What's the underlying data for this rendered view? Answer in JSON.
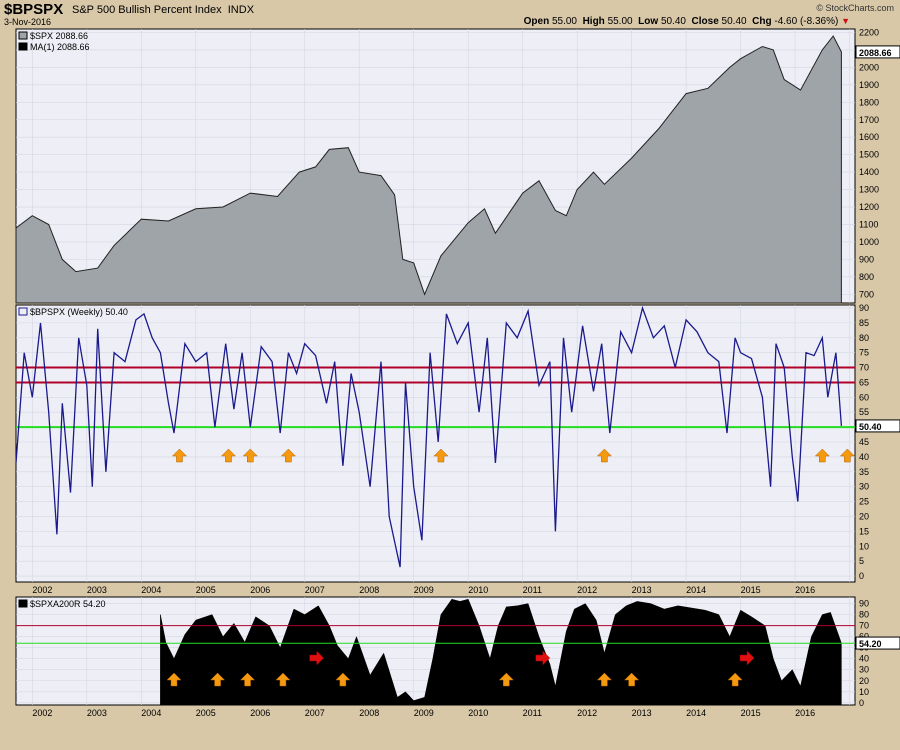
{
  "header": {
    "symbol": "$BPSPX",
    "description": "S&P 500 Bullish Percent Index",
    "exchange": "INDX",
    "date": "3-Nov-2016",
    "credit": "© StockCharts.com",
    "ohlc": {
      "open_label": "Open",
      "open": "55.00",
      "high_label": "High",
      "high": "55.00",
      "low_label": "Low",
      "low": "50.40",
      "close_label": "Close",
      "close": "50.40",
      "chg_label": "Chg",
      "chg": "-4.60 (-8.36%)"
    }
  },
  "colors": {
    "frame": "#d8c8a8",
    "panel_bg": "#eeeff6",
    "price_fill": "#9ea4a8",
    "bp_line": "#1a1a8c",
    "red_level": "#b0002a",
    "green_level": "#22dd22",
    "orange_arrow": "#f59a10",
    "red_arrow": "#e01010",
    "bars": "#000000"
  },
  "chart_data": [
    {
      "type": "area",
      "panel": "top",
      "legend": [
        "$SPX 2088.66",
        "MA(1) 2088.66"
      ],
      "last_value_label": "2088.66",
      "ylim": [
        650,
        2220
      ],
      "yticks": [
        700,
        800,
        900,
        1000,
        1100,
        1200,
        1300,
        1400,
        1500,
        1600,
        1700,
        1800,
        1900,
        2000,
        2100,
        2200
      ],
      "x_labels": [
        "2002",
        "2003",
        "2004",
        "2005",
        "2006",
        "2007",
        "2008",
        "2009",
        "2010",
        "2011",
        "2012",
        "2013",
        "2014",
        "2015",
        "2016"
      ],
      "series": [
        {
          "x": [
            2001.7,
            2002.0,
            2002.3,
            2002.55,
            2002.8,
            2003.2,
            2003.5,
            2004.0,
            2004.5,
            2005.0,
            2005.5,
            2006.0,
            2006.5,
            2006.9,
            2007.2,
            2007.45,
            2007.8,
            2008.0,
            2008.4,
            2008.65,
            2008.8,
            2009.0,
            2009.2,
            2009.5,
            2010.0,
            2010.3,
            2010.5,
            2011.0,
            2011.3,
            2011.6,
            2011.8,
            2012.0,
            2012.3,
            2012.5,
            2013.0,
            2013.5,
            2014.0,
            2014.4,
            2014.8,
            2015.0,
            2015.4,
            2015.6,
            2015.8,
            2016.1,
            2016.5,
            2016.7,
            2016.85
          ],
          "values": [
            1080,
            1150,
            1100,
            900,
            830,
            850,
            980,
            1130,
            1120,
            1190,
            1200,
            1280,
            1260,
            1400,
            1430,
            1530,
            1540,
            1400,
            1380,
            1270,
            900,
            880,
            700,
            920,
            1110,
            1190,
            1050,
            1280,
            1350,
            1180,
            1150,
            1300,
            1400,
            1330,
            1480,
            1650,
            1850,
            1880,
            2000,
            2050,
            2120,
            2100,
            1930,
            1870,
            2100,
            2180,
            2088.66
          ]
        }
      ]
    },
    {
      "type": "line",
      "panel": "middle",
      "legend": [
        "$BPSPX (Weekly) 50.40"
      ],
      "last_value_label": "50.40",
      "ylim": [
        -2,
        91
      ],
      "yticks": [
        0,
        5,
        10,
        15,
        20,
        25,
        30,
        35,
        40,
        45,
        50,
        55,
        60,
        65,
        70,
        75,
        80,
        85,
        90
      ],
      "levels": [
        70,
        65,
        50
      ],
      "series": [
        {
          "x": [
            2001.7,
            2001.85,
            2002.0,
            2002.15,
            2002.3,
            2002.45,
            2002.55,
            2002.7,
            2002.85,
            2003.0,
            2003.1,
            2003.2,
            2003.35,
            2003.5,
            2003.7,
            2003.9,
            2004.05,
            2004.2,
            2004.35,
            2004.5,
            2004.6,
            2004.8,
            2005.0,
            2005.2,
            2005.35,
            2005.55,
            2005.7,
            2005.85,
            2006.0,
            2006.2,
            2006.4,
            2006.55,
            2006.7,
            2006.85,
            2007.0,
            2007.2,
            2007.4,
            2007.55,
            2007.7,
            2007.85,
            2008.0,
            2008.2,
            2008.4,
            2008.55,
            2008.75,
            2008.85,
            2009.0,
            2009.15,
            2009.3,
            2009.45,
            2009.6,
            2009.8,
            2010.0,
            2010.2,
            2010.35,
            2010.5,
            2010.7,
            2010.9,
            2011.1,
            2011.3,
            2011.5,
            2011.6,
            2011.75,
            2011.9,
            2012.1,
            2012.3,
            2012.45,
            2012.6,
            2012.8,
            2013.0,
            2013.2,
            2013.4,
            2013.6,
            2013.8,
            2014.0,
            2014.2,
            2014.4,
            2014.6,
            2014.75,
            2014.9,
            2015.0,
            2015.2,
            2015.4,
            2015.55,
            2015.65,
            2015.8,
            2015.95,
            2016.05,
            2016.2,
            2016.35,
            2016.5,
            2016.6,
            2016.75,
            2016.85
          ],
          "values": [
            38,
            75,
            60,
            85,
            55,
            14,
            58,
            28,
            80,
            64,
            30,
            83,
            35,
            75,
            72,
            86,
            88,
            80,
            75,
            58,
            48,
            78,
            72,
            75,
            50,
            78,
            56,
            75,
            50,
            77,
            72,
            48,
            75,
            68,
            78,
            74,
            58,
            72,
            37,
            68,
            55,
            30,
            72,
            20,
            3,
            65,
            30,
            12,
            75,
            45,
            88,
            78,
            85,
            55,
            80,
            38,
            85,
            80,
            89,
            64,
            72,
            15,
            80,
            55,
            84,
            62,
            78,
            48,
            82,
            75,
            90,
            80,
            84,
            70,
            86,
            82,
            75,
            72,
            48,
            80,
            75,
            73,
            60,
            30,
            78,
            70,
            40,
            25,
            75,
            74,
            80,
            60,
            75,
            50.4
          ]
        }
      ]
    },
    {
      "type": "bar",
      "panel": "bottom",
      "legend": [
        "$SPXA200R 54.20"
      ],
      "last_value_label": "54.20",
      "ylim": [
        -2,
        96
      ],
      "yticks": [
        0,
        10,
        20,
        30,
        40,
        50,
        60,
        70,
        80,
        90
      ],
      "levels": [
        70,
        54
      ],
      "series": [
        {
          "x": [
            2004.35,
            2004.45,
            2004.6,
            2004.8,
            2005.0,
            2005.3,
            2005.5,
            2005.7,
            2005.9,
            2006.1,
            2006.35,
            2006.55,
            2006.8,
            2007.0,
            2007.25,
            2007.45,
            2007.6,
            2007.8,
            2007.95,
            2008.2,
            2008.45,
            2008.7,
            2008.85,
            2009.0,
            2009.2,
            2009.35,
            2009.5,
            2009.7,
            2009.85,
            2010.0,
            2010.2,
            2010.4,
            2010.55,
            2010.7,
            2010.9,
            2011.1,
            2011.3,
            2011.5,
            2011.6,
            2011.8,
            2011.95,
            2012.15,
            2012.35,
            2012.5,
            2012.7,
            2012.9,
            2013.1,
            2013.35,
            2013.6,
            2013.85,
            2014.1,
            2014.35,
            2014.6,
            2014.8,
            2015.0,
            2015.2,
            2015.45,
            2015.6,
            2015.75,
            2015.95,
            2016.1,
            2016.3,
            2016.5,
            2016.65,
            2016.85
          ],
          "values": [
            80,
            55,
            40,
            62,
            75,
            80,
            60,
            72,
            55,
            78,
            70,
            50,
            85,
            80,
            88,
            70,
            52,
            40,
            60,
            25,
            45,
            5,
            10,
            2,
            5,
            40,
            80,
            94,
            92,
            94,
            70,
            40,
            70,
            87,
            88,
            90,
            60,
            35,
            15,
            65,
            85,
            90,
            75,
            45,
            80,
            88,
            92,
            90,
            85,
            88,
            86,
            84,
            80,
            60,
            84,
            78,
            70,
            40,
            20,
            30,
            15,
            60,
            80,
            82,
            54.2
          ]
        }
      ]
    }
  ]
}
